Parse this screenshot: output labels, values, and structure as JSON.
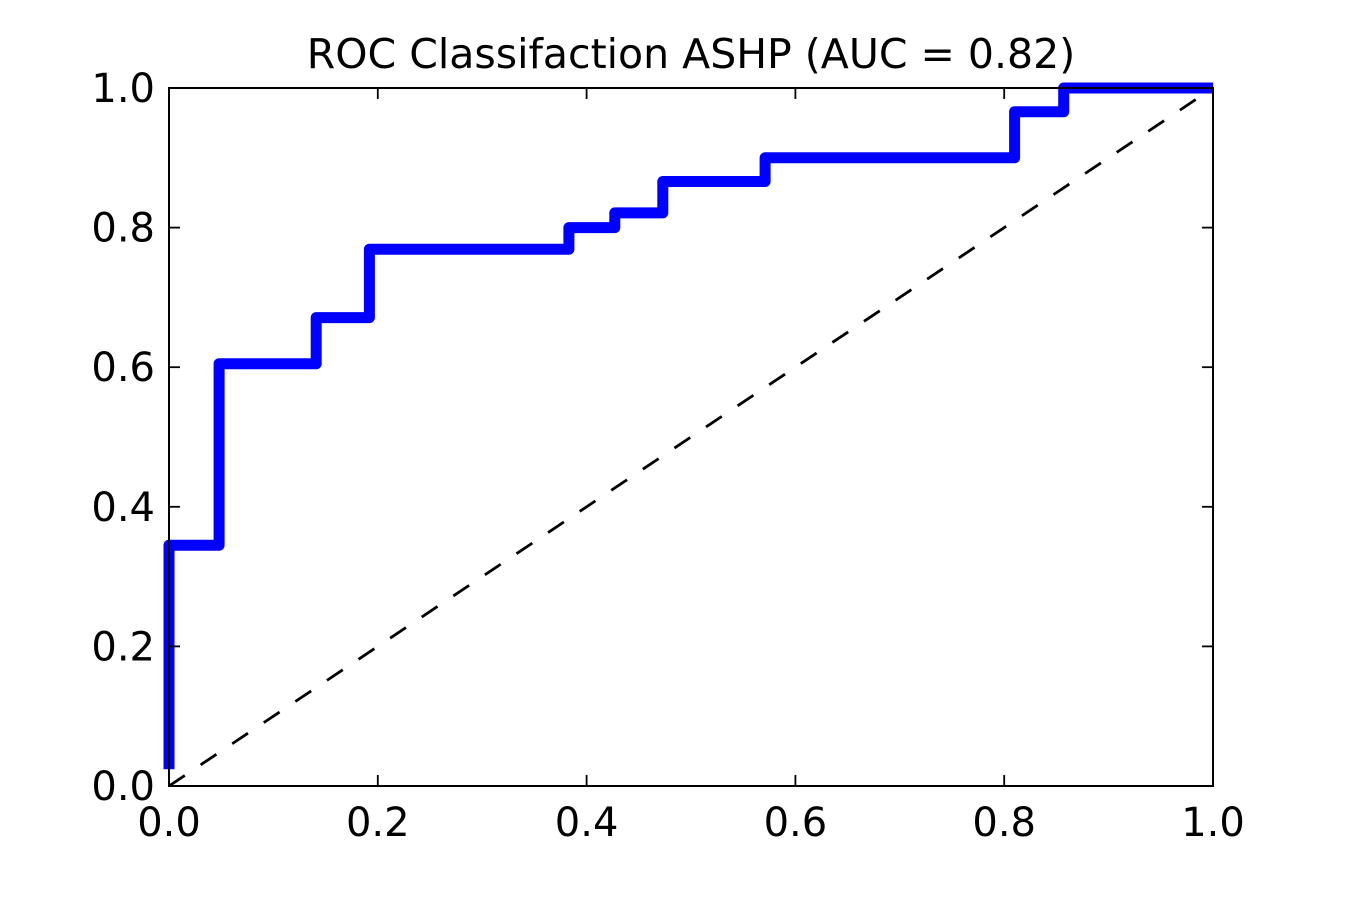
{
  "page": {
    "background_color": "#FFFFFF"
  },
  "chart_data": {
    "type": "line",
    "title": "ROC Classifaction ASHP (AUC = 0.82)",
    "auc_label": "AUC = 0.82",
    "xlabel": "",
    "ylabel": "",
    "xlim": [
      0.0,
      1.0
    ],
    "ylim": [
      0.0,
      1.0
    ],
    "x_ticks": [
      0.0,
      0.2,
      0.4,
      0.6,
      0.8,
      1.0
    ],
    "y_ticks": [
      0.0,
      0.2,
      0.4,
      0.6,
      0.8,
      1.0
    ],
    "x_tick_labels": [
      "0.0",
      "0.2",
      "0.4",
      "0.6",
      "0.8",
      "1.0"
    ],
    "y_tick_labels": [
      "0.0",
      "0.2",
      "0.4",
      "0.6",
      "0.8",
      "1.0"
    ],
    "grid": false,
    "legend": "none",
    "tick_direction": "in",
    "frame_color": "#000000",
    "series": [
      {
        "name": "roc-curve",
        "line_style": "solid",
        "color": "#0000FF",
        "line_width": 11,
        "points": [
          [
            0.0,
            0.024
          ],
          [
            0.0,
            0.345
          ],
          [
            0.048,
            0.345
          ],
          [
            0.048,
            0.605
          ],
          [
            0.141,
            0.605
          ],
          [
            0.141,
            0.671
          ],
          [
            0.192,
            0.671
          ],
          [
            0.192,
            0.769
          ],
          [
            0.383,
            0.769
          ],
          [
            0.383,
            0.8
          ],
          [
            0.427,
            0.8
          ],
          [
            0.427,
            0.821
          ],
          [
            0.473,
            0.821
          ],
          [
            0.473,
            0.866
          ],
          [
            0.571,
            0.866
          ],
          [
            0.571,
            0.9
          ],
          [
            0.81,
            0.9
          ],
          [
            0.81,
            0.966
          ],
          [
            0.857,
            0.966
          ],
          [
            0.857,
            1.0
          ],
          [
            1.0,
            1.0
          ]
        ]
      },
      {
        "name": "chance-diagonal",
        "line_style": "dashed",
        "color": "#000000",
        "line_width": 2.8,
        "points": [
          [
            0.0,
            0.0
          ],
          [
            1.0,
            1.0
          ]
        ]
      }
    ]
  }
}
